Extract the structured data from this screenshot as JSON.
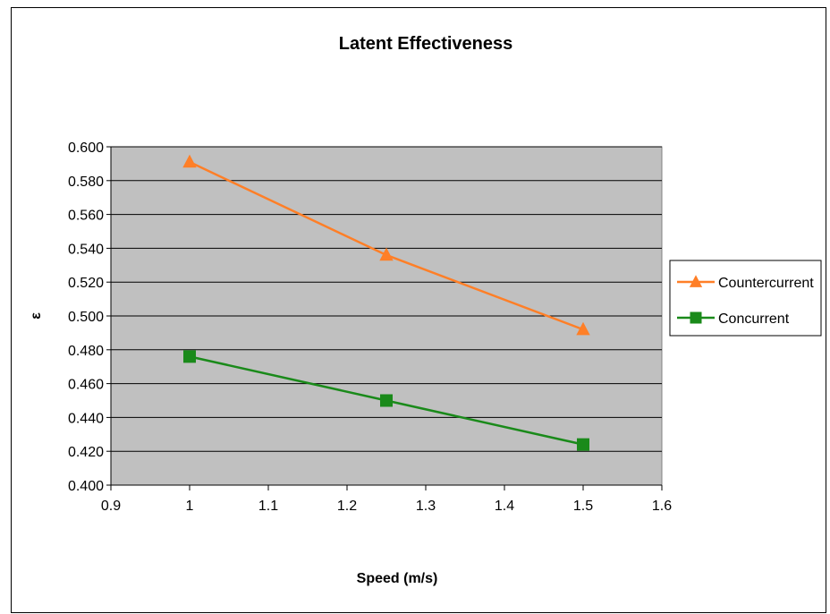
{
  "chart_data": {
    "type": "line",
    "title": "Latent Effectiveness",
    "xlabel": "Speed (m/s)",
    "ylabel": "ε",
    "xlim": [
      0.9,
      1.6
    ],
    "ylim": [
      0.4,
      0.6
    ],
    "x_ticks": [
      "0.9",
      "1",
      "1.1",
      "1.2",
      "1.3",
      "1.4",
      "1.5",
      "1.6"
    ],
    "y_ticks": [
      "0.400",
      "0.420",
      "0.440",
      "0.460",
      "0.480",
      "0.500",
      "0.520",
      "0.540",
      "0.560",
      "0.580",
      "0.600"
    ],
    "grid": "horizontal",
    "legend_position": "right",
    "series": [
      {
        "name": "Countercurrent",
        "marker": "triangle",
        "color": "#ff7f27",
        "x": [
          1,
          1.25,
          1.5
        ],
        "values": [
          0.591,
          0.536,
          0.492
        ]
      },
      {
        "name": "Concurrent",
        "marker": "square",
        "color": "#1a8a1a",
        "x": [
          1,
          1.25,
          1.5
        ],
        "values": [
          0.476,
          0.45,
          0.424
        ]
      }
    ]
  },
  "colors": {
    "plot_background": "#c0c0c0",
    "gridline": "#000000"
  }
}
